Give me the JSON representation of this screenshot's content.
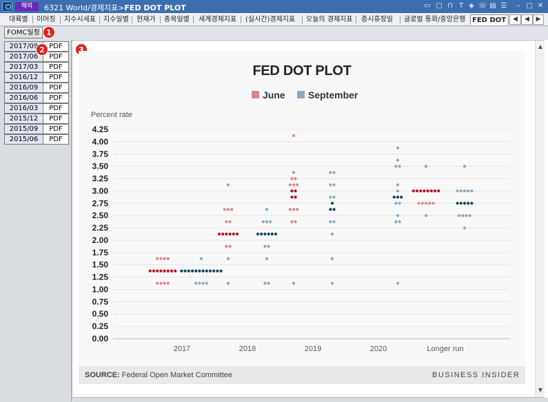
{
  "window": {
    "tag": "해외",
    "title_prefix": "6321 World/경제지표>",
    "title_main": "FED DOT PLOT",
    "icons": [
      "monitor-icon",
      "window-icon",
      "lock-icon",
      "text-icon",
      "shield-icon",
      "phone-icon",
      "print-icon",
      "list-icon",
      "minimize-icon",
      "maximize-icon",
      "close-icon"
    ]
  },
  "tabs": [
    "대륙별",
    "이머징",
    "지수시세표",
    "지수일별",
    "현재가",
    "종목일별",
    "세계경제지표",
    "(실시간)경제지표",
    "오늘의 경제지표",
    "증시휴장일",
    "글로벌 통화/중앙은행",
    "FED DOT PLOT"
  ],
  "active_tab": "FED DOT PLOT",
  "tab_nav": [
    "◀",
    "◀",
    "▶",
    "+"
  ],
  "toolbar": {
    "fomc_label": "FOMC일정"
  },
  "badges": [
    "1",
    "2",
    "3"
  ],
  "dates": [
    {
      "date": "2017/09",
      "file": "PDF"
    },
    {
      "date": "2017/06",
      "file": "PDF"
    },
    {
      "date": "2017/03",
      "file": "PDF"
    },
    {
      "date": "2016/12",
      "file": "PDF"
    },
    {
      "date": "2016/09",
      "file": "PDF"
    },
    {
      "date": "2016/06",
      "file": "PDF"
    },
    {
      "date": "2016/03",
      "file": "PDF"
    },
    {
      "date": "2015/12",
      "file": "PDF"
    },
    {
      "date": "2015/09",
      "file": "PDF"
    },
    {
      "date": "2015/06",
      "file": "PDF"
    }
  ],
  "footer": {
    "source_label": "SOURCE:",
    "source_text": "Federal Open Market Committee",
    "brand": "BUSINESS INSIDER"
  },
  "colors": {
    "june": "#d9898a",
    "june_median": "#b0141e",
    "sept": "#8aaabb",
    "sept_median": "#12445e"
  },
  "chart_data": {
    "type": "scatter",
    "title": "FED DOT PLOT",
    "ylabel": "Percent rate",
    "ylim": [
      0,
      4.25
    ],
    "yticks": [
      "4.25",
      "4.00",
      "3.75",
      "3.50",
      "3.25",
      "3.00",
      "2.75",
      "2.50",
      "2.25",
      "2.00",
      "1.75",
      "1.50",
      "1.25",
      "1.00",
      "0.75",
      "0.50",
      "0.25",
      "0.00"
    ],
    "categories": [
      "2017",
      "2018",
      "2019",
      "2020",
      "Longer run"
    ],
    "legend": "top-center",
    "grid": true,
    "series": [
      {
        "name": "June",
        "dots": [
          [
            {
              "y": 1.625,
              "n": 4
            },
            {
              "y": 1.375,
              "n": 8,
              "median": true
            },
            {
              "y": 1.125,
              "n": 4
            }
          ],
          [
            {
              "y": 3.125,
              "n": 1
            },
            {
              "y": 2.625,
              "n": 3
            },
            {
              "y": 2.375,
              "n": 2
            },
            {
              "y": 2.125,
              "n": 6,
              "median": true
            },
            {
              "y": 1.875,
              "n": 2
            },
            {
              "y": 1.625,
              "n": 1
            },
            {
              "y": 1.125,
              "n": 1
            }
          ],
          [
            {
              "y": 4.125,
              "n": 1
            },
            {
              "y": 3.375,
              "n": 1
            },
            {
              "y": 3.25,
              "n": 2
            },
            {
              "y": 3.125,
              "n": 3
            },
            {
              "y": 3.0,
              "n": 2,
              "median": true
            },
            {
              "y": 2.875,
              "n": 2,
              "median": true
            },
            {
              "y": 2.625,
              "n": 3
            },
            {
              "y": 2.375,
              "n": 2
            },
            {
              "y": 1.125,
              "n": 1
            }
          ],
          [],
          [
            {
              "y": 3.5,
              "n": 1
            },
            {
              "y": 3.0,
              "n": 8,
              "median": true
            },
            {
              "y": 2.75,
              "n": 5
            },
            {
              "y": 2.5,
              "n": 1
            }
          ]
        ]
      },
      {
        "name": "September",
        "dots": [
          [
            {
              "y": 1.625,
              "n": 1
            },
            {
              "y": 1.375,
              "n": 12,
              "median": true
            },
            {
              "y": 1.125,
              "n": 4
            }
          ],
          [
            {
              "y": 2.625,
              "n": 1
            },
            {
              "y": 2.375,
              "n": 3
            },
            {
              "y": 2.125,
              "n": 6,
              "median": true
            },
            {
              "y": 1.875,
              "n": 2
            },
            {
              "y": 1.625,
              "n": 1
            },
            {
              "y": 1.125,
              "n": 2
            }
          ],
          [
            {
              "y": 3.375,
              "n": 2
            },
            {
              "y": 3.125,
              "n": 2
            },
            {
              "y": 2.875,
              "n": 2
            },
            {
              "y": 2.75,
              "n": 1,
              "median": true
            },
            {
              "y": 2.625,
              "n": 2,
              "median": true
            },
            {
              "y": 2.375,
              "n": 2
            },
            {
              "y": 2.125,
              "n": 1
            },
            {
              "y": 1.625,
              "n": 1
            },
            {
              "y": 1.125,
              "n": 1
            }
          ],
          [
            {
              "y": 3.875,
              "n": 1
            },
            {
              "y": 3.625,
              "n": 1
            },
            {
              "y": 3.5,
              "n": 2
            },
            {
              "y": 3.125,
              "n": 1
            },
            {
              "y": 3.0,
              "n": 1
            },
            {
              "y": 2.875,
              "n": 3,
              "median": true
            },
            {
              "y": 2.75,
              "n": 2
            },
            {
              "y": 2.5,
              "n": 1
            },
            {
              "y": 2.375,
              "n": 2
            },
            {
              "y": 1.125,
              "n": 1
            }
          ],
          [
            {
              "y": 3.5,
              "n": 1
            },
            {
              "y": 3.0,
              "n": 5
            },
            {
              "y": 2.75,
              "n": 5,
              "median": true
            },
            {
              "y": 2.5,
              "n": 4
            },
            {
              "y": 2.25,
              "n": 1
            }
          ]
        ]
      }
    ]
  }
}
